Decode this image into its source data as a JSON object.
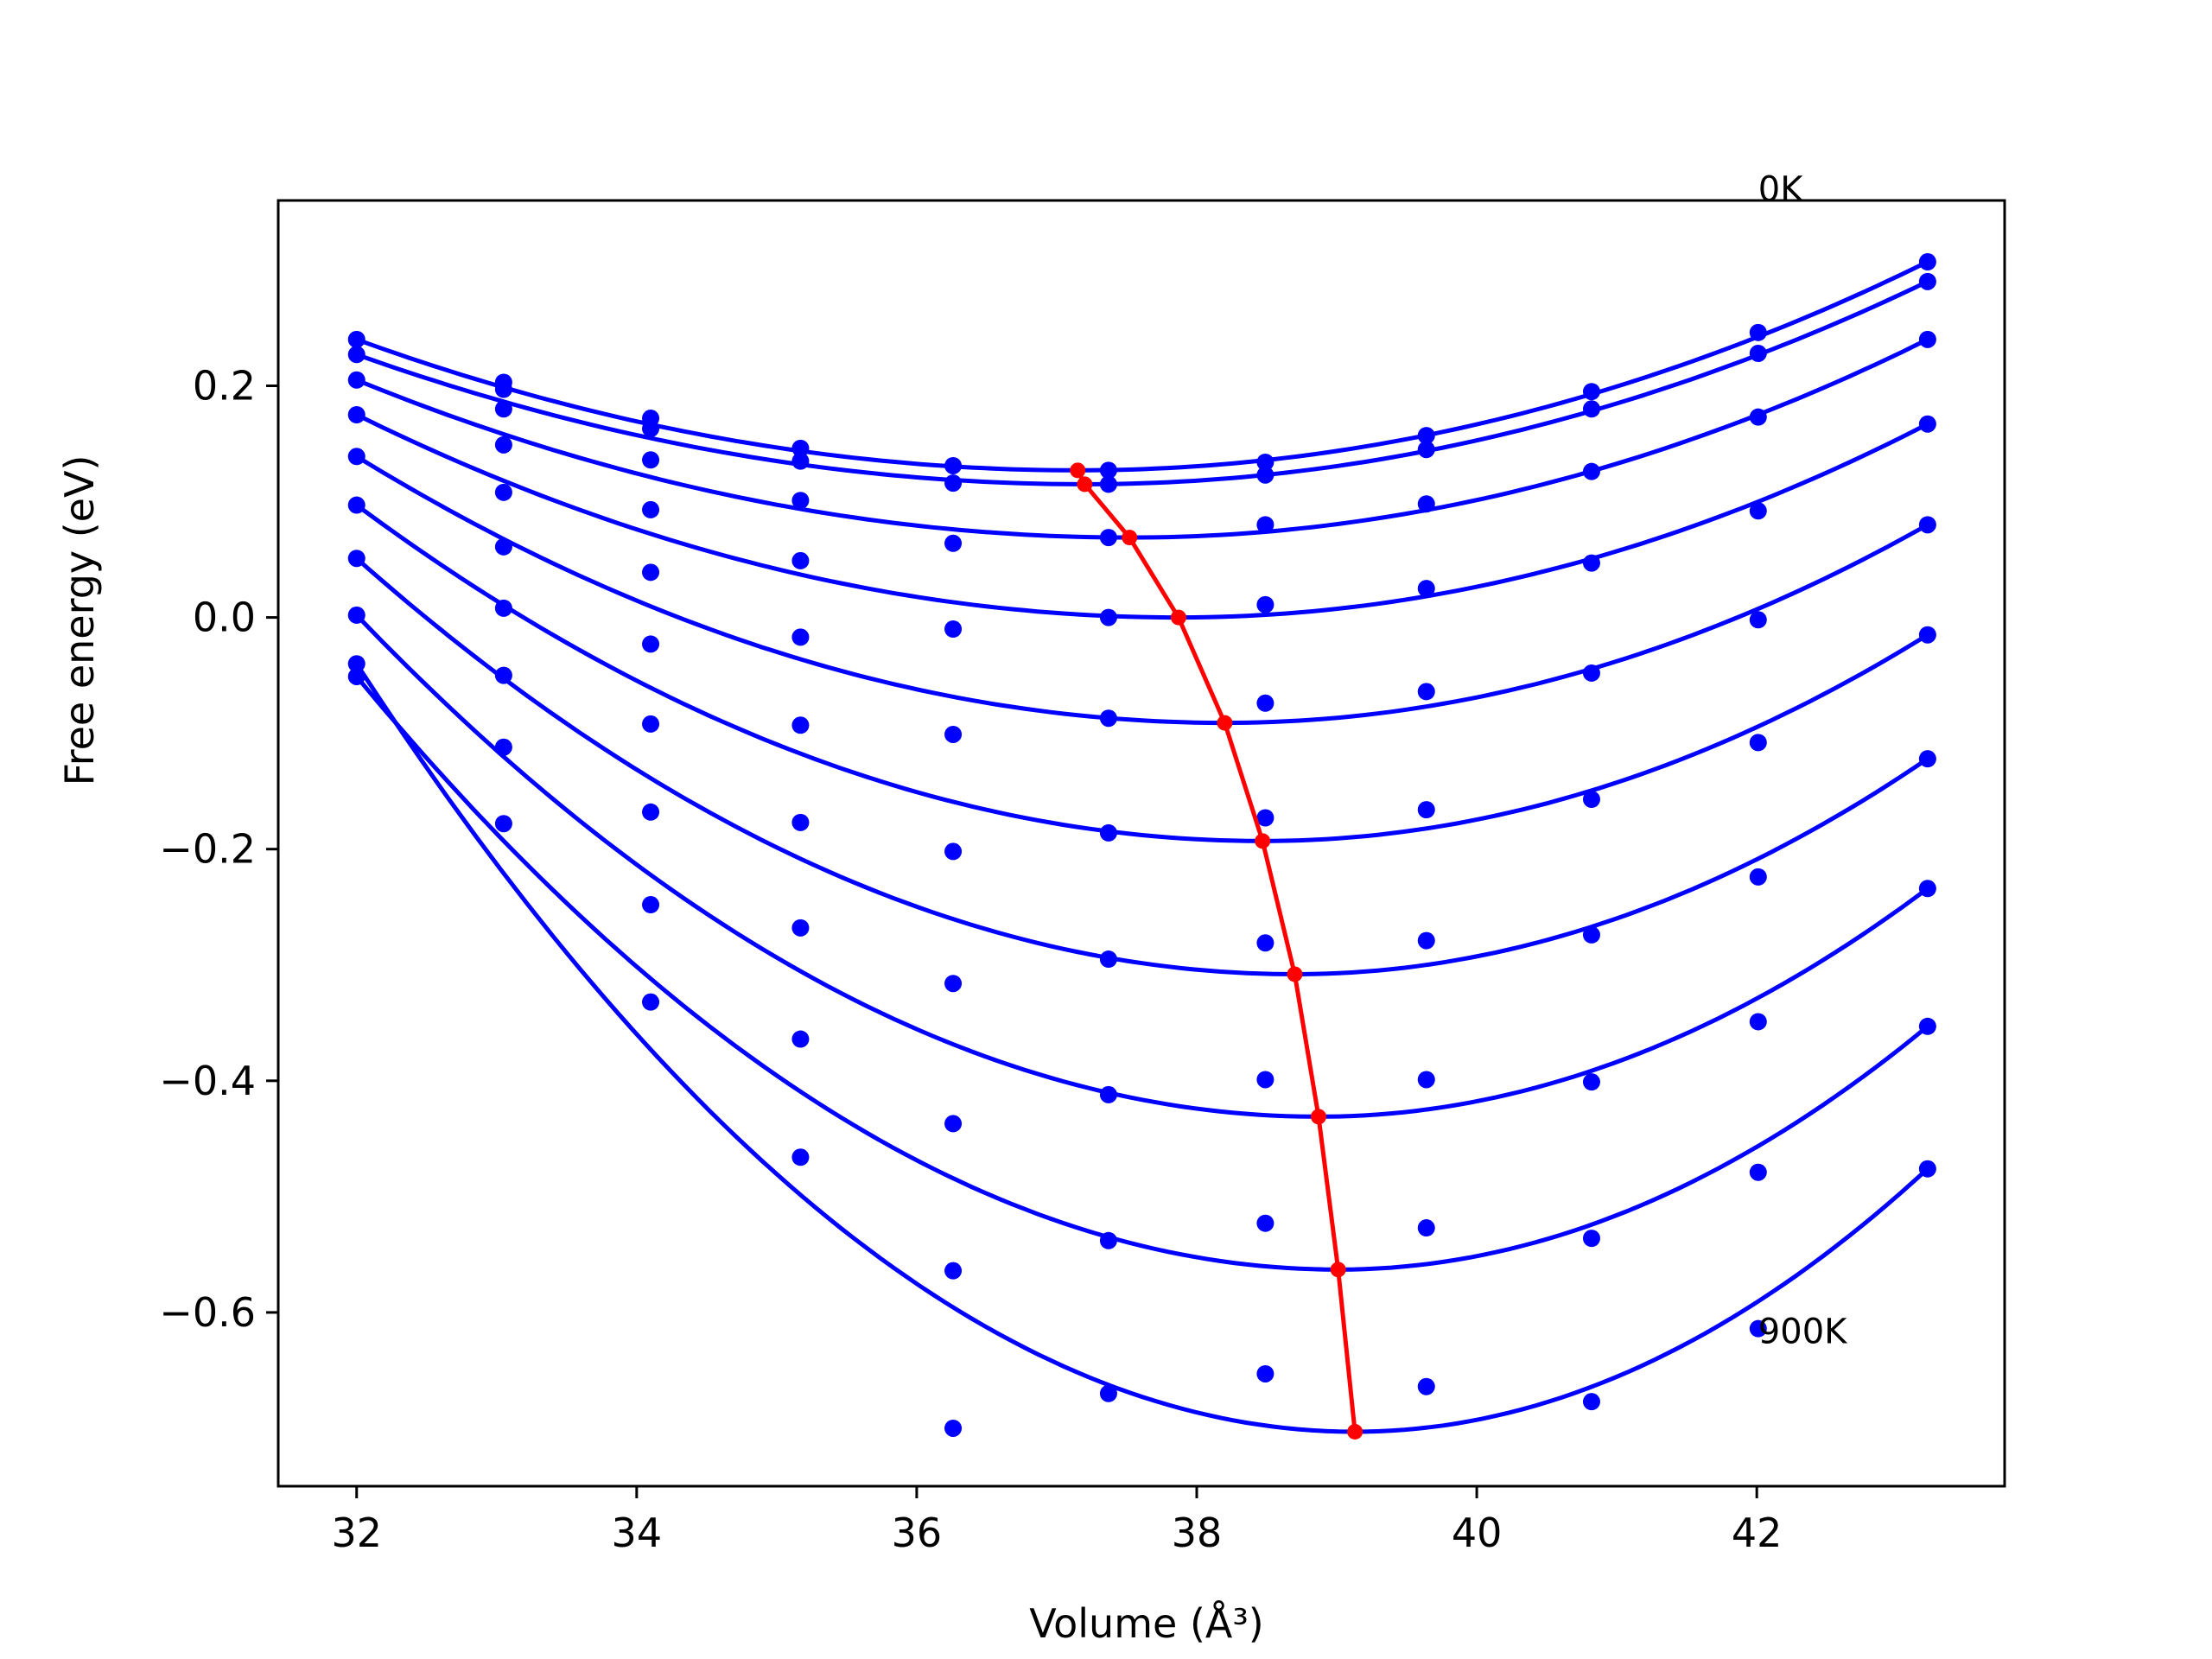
{
  "chart_data": {
    "type": "scatter",
    "title": "",
    "xlabel": "Volume (Å³)",
    "ylabel": "Free energy (eV)",
    "xlim": [
      31.44,
      43.77
    ],
    "ylim": [
      -0.75,
      0.36
    ],
    "xticks": [
      32,
      34,
      36,
      38,
      40,
      42
    ],
    "xtick_labels": [
      "32",
      "34",
      "36",
      "38",
      "40",
      "42"
    ],
    "yticks": [
      0.2,
      0.0,
      -0.2,
      -0.4,
      -0.6
    ],
    "ytick_labels": [
      "0.2",
      "0.0",
      "−0.2",
      "−0.4",
      "−0.6"
    ],
    "grid": false,
    "legend": "none",
    "volumes": [
      32.0,
      33.05,
      34.1,
      35.17,
      36.26,
      37.37,
      38.49,
      39.64,
      40.82,
      42.01,
      43.22
    ],
    "series": [
      {
        "values": [
          0.24,
          0.203,
          0.172,
          0.146,
          0.131,
          0.127,
          0.134,
          0.157,
          0.195,
          0.246,
          0.307
        ]
      },
      {
        "values": [
          0.227,
          0.197,
          0.163,
          0.135,
          0.116,
          0.115,
          0.123,
          0.145,
          0.18,
          0.228,
          0.29
        ]
      },
      {
        "values": [
          0.205,
          0.18,
          0.136,
          0.101,
          0.064,
          0.069,
          0.08,
          0.098,
          0.126,
          0.173,
          0.24
        ]
      },
      {
        "values": [
          0.175,
          0.149,
          0.093,
          0.049,
          -0.01,
          0.0,
          0.011,
          0.025,
          0.047,
          0.092,
          0.167
        ]
      },
      {
        "values": [
          0.139,
          0.108,
          0.039,
          -0.017,
          -0.101,
          -0.087,
          -0.074,
          -0.064,
          -0.048,
          -0.002,
          0.08
        ]
      },
      {
        "values": [
          0.097,
          0.061,
          -0.023,
          -0.093,
          -0.202,
          -0.186,
          -0.173,
          -0.166,
          -0.157,
          -0.108,
          -0.015
        ]
      },
      {
        "values": [
          0.051,
          0.008,
          -0.092,
          -0.177,
          -0.316,
          -0.295,
          -0.281,
          -0.279,
          -0.274,
          -0.224,
          -0.122
        ]
      },
      {
        "values": [
          0.002,
          -0.05,
          -0.168,
          -0.268,
          -0.437,
          -0.412,
          -0.399,
          -0.399,
          -0.401,
          -0.349,
          -0.234
        ]
      },
      {
        "values": [
          -0.051,
          -0.112,
          -0.248,
          -0.364,
          -0.564,
          -0.538,
          -0.523,
          -0.527,
          -0.536,
          -0.479,
          -0.353
        ]
      },
      {
        "values": [
          -0.04,
          -0.178,
          -0.332,
          -0.466,
          -0.7,
          -0.67,
          -0.653,
          -0.664,
          -0.677,
          -0.614,
          -0.476
        ]
      }
    ],
    "fits": [
      {
        "v0": 37.15,
        "f0": 0.127
      },
      {
        "v0": 37.2,
        "f0": 0.115
      },
      {
        "v0": 37.52,
        "f0": 0.069
      },
      {
        "v0": 37.87,
        "f0": 0.0
      },
      {
        "v0": 38.2,
        "f0": -0.091
      },
      {
        "v0": 38.47,
        "f0": -0.193
      },
      {
        "v0": 38.7,
        "f0": -0.308
      },
      {
        "v0": 38.87,
        "f0": -0.431
      },
      {
        "v0": 39.01,
        "f0": -0.563
      },
      {
        "v0": 39.13,
        "f0": -0.703
      }
    ],
    "minima_line": {
      "x": [
        37.15,
        37.2,
        37.52,
        37.87,
        38.2,
        38.47,
        38.7,
        38.87,
        39.01,
        39.13
      ],
      "y": [
        0.127,
        0.115,
        0.069,
        0.0,
        -0.091,
        -0.193,
        -0.308,
        -0.431,
        -0.563,
        -0.703
      ]
    },
    "annotations": [
      {
        "text": "0K",
        "x": 42.01,
        "y": 0.37
      },
      {
        "text": "900K",
        "x": 42.01,
        "y": -0.616
      }
    ],
    "colors": {
      "curves": "#0000ff",
      "minima": "#ff0000",
      "frame": "#000000"
    }
  }
}
